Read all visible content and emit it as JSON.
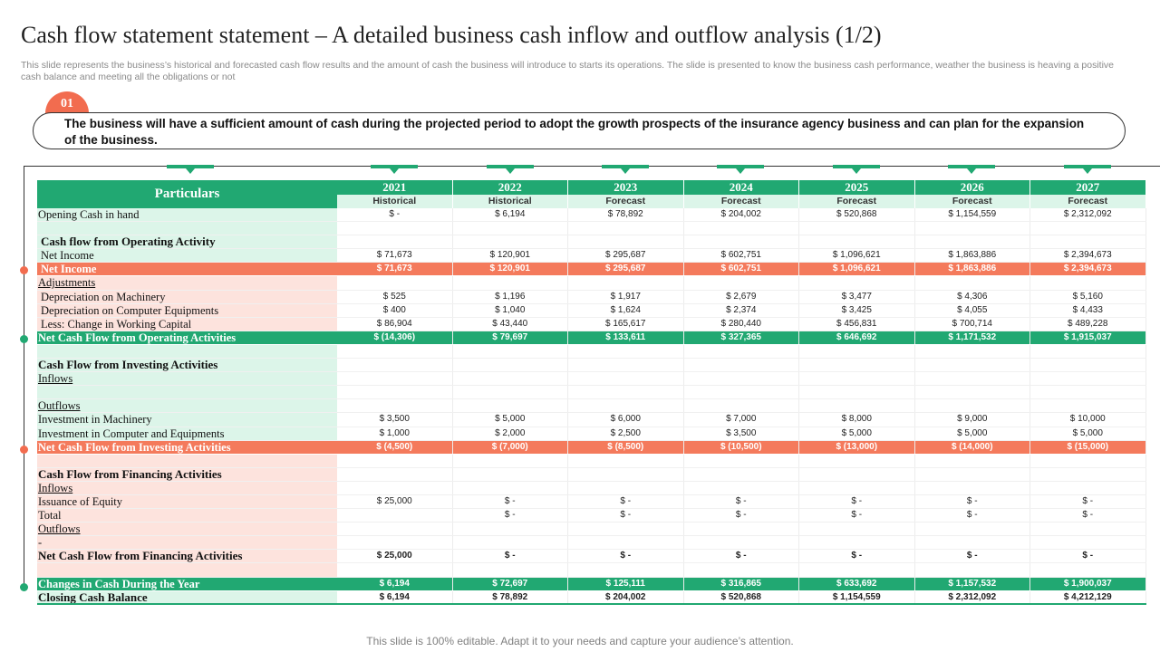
{
  "title": "Cash flow statement statement – A detailed business cash inflow and outflow analysis (1/2)",
  "subtitle": "This slide represents the business’s historical and forecasted cash flow results and the amount of cash the business will introduce to starts its operations. The slide is presented to know the business cash performance, weather the business is heaving a positive cash balance and meeting all the obligations or not",
  "badge": "01",
  "callout": "The business will have a sufficient amount of cash during the projected period to adopt the growth prospects of the insurance agency business and can plan for the expansion of the business.",
  "table": {
    "particulars_label": "Particulars",
    "years": [
      "2021",
      "2022",
      "2023",
      "2024",
      "2025",
      "2026",
      "2027"
    ],
    "types": [
      "Historical",
      "Historical",
      "Forecast",
      "Forecast",
      "Forecast",
      "Forecast",
      "Forecast"
    ],
    "rows": [
      {
        "label": "Opening Cash in hand",
        "cells": [
          "$ -",
          "$ 6,194",
          "$ 78,892",
          "$ 204,002",
          "$        520,868",
          "$ 1,154,559",
          "$ 2,312,092"
        ]
      },
      {
        "label": "",
        "cells": [
          "",
          "",
          "",
          "",
          "",
          "",
          ""
        ]
      },
      {
        "label": "Cash flow from Operating Activity",
        "cells": [
          "",
          "",
          "",
          "",
          "",
          "",
          ""
        ]
      },
      {
        "label": "Net Income",
        "cells": [
          "$ 71,673",
          "$ 120,901",
          "$ 295,687",
          "$ 602,751",
          "$      1,096,621",
          "$ 1,863,886",
          "$ 2,394,673"
        ]
      },
      {
        "label": "Net Income",
        "cells": [
          "$ 71,673",
          "$ 120,901",
          "$ 295,687",
          "$ 602,751",
          "$    1,096,621",
          "$ 1,863,886",
          "$ 2,394,673"
        ]
      },
      {
        "label": "Adjustments",
        "cells": [
          "",
          "",
          "",
          "",
          "",
          "",
          ""
        ]
      },
      {
        "label": "Depreciation on Machinery",
        "cells": [
          "$ 525",
          "$ 1,196",
          "$ 1,917",
          "$ 2,679",
          "$ 3,477",
          "$ 4,306",
          "$ 5,160"
        ]
      },
      {
        "label": "Depreciation on Computer Equipments",
        "cells": [
          "$ 400",
          "$ 1,040",
          "$ 1,624",
          "$ 2,374",
          "$ 3,425",
          "$ 4,055",
          "$ 4,433"
        ]
      },
      {
        "label": "Less: Change in Working Capital",
        "cells": [
          "$ 86,904",
          "$ 43,440",
          "$ 165,617",
          "$ 280,440",
          "$ 456,831",
          "$ 700,714",
          "$ 489,228"
        ]
      },
      {
        "label": "Net Cash Flow from Operating Activities",
        "cells": [
          "$ (14,306)",
          "$ 79,697",
          "$ 133,611",
          "$ 327,365",
          "$ 646,692",
          "$ 1,171,532",
          "$ 1,915,037"
        ]
      },
      {
        "label": "",
        "cells": [
          "",
          "",
          "",
          "",
          "",
          "",
          ""
        ]
      },
      {
        "label": "Cash Flow from Investing Activities",
        "cells": [
          "",
          "",
          "",
          "",
          "",
          "",
          ""
        ]
      },
      {
        "label": "Inflows",
        "cells": [
          "",
          "",
          "",
          "",
          "",
          "",
          ""
        ]
      },
      {
        "label": "",
        "cells": [
          "",
          "",
          "",
          "",
          "",
          "",
          ""
        ]
      },
      {
        "label": "Outflows",
        "cells": [
          "",
          "",
          "",
          "",
          "",
          "",
          ""
        ]
      },
      {
        "label": "Investment in Machinery",
        "cells": [
          "$ 3,500",
          "$ 5,000",
          "$ 6,000",
          "$ 7,000",
          "$ 8,000",
          "$ 9,000",
          "$ 10,000"
        ]
      },
      {
        "label": "Investment in Computer and Equipments",
        "cells": [
          "$ 1,000",
          "$ 2,000",
          "$ 2,500",
          "$ 3,500",
          "$ 5,000",
          "$ 5,000",
          "$ 5,000"
        ]
      },
      {
        "label": "Net Cash Flow from Investing Activities",
        "cells": [
          "$ (4,500)",
          "$ (7,000)",
          "$ (8,500)",
          "$ (10,500)",
          "$ (13,000)",
          "$ (14,000)",
          "$ (15,000)"
        ]
      },
      {
        "label": "",
        "cells": [
          "",
          "",
          "",
          "",
          "",
          "",
          ""
        ]
      },
      {
        "label": "Cash Flow from Financing Activities",
        "cells": [
          "",
          "",
          "",
          "",
          "",
          "",
          ""
        ]
      },
      {
        "label": "Inflows",
        "cells": [
          "",
          "",
          "",
          "",
          "",
          "",
          ""
        ]
      },
      {
        "label": "Issuance of Equity",
        "cells": [
          "$ 25,000",
          "$ -",
          "$ -",
          "$ -",
          "$ -",
          "$ -",
          "$ -"
        ]
      },
      {
        "label": "Total",
        "cells": [
          "",
          "$ -",
          "$ -",
          "$ -",
          "$ -",
          "$ -",
          "$ -"
        ]
      },
      {
        "label": "Outflows",
        "cells": [
          "",
          "",
          "",
          "",
          "",
          "",
          ""
        ]
      },
      {
        "label": "-",
        "cells": [
          "",
          "",
          "",
          "",
          "",
          "",
          ""
        ]
      },
      {
        "label": "Net Cash Flow from Financing Activities",
        "cells": [
          "$ 25,000",
          "$ -",
          "$ -",
          "$ -",
          "$             -",
          "$ -",
          "$ -"
        ]
      },
      {
        "label": "",
        "cells": [
          "",
          "",
          "",
          "",
          "",
          "",
          ""
        ]
      },
      {
        "label": "Changes in Cash During the Year",
        "cells": [
          "$ 6,194",
          "$ 72,697",
          "$ 125,111",
          "$ 316,865",
          "$ 633,692",
          "$ 1,157,532",
          "$ 1,900,037"
        ]
      },
      {
        "label": "Closing Cash Balance",
        "cells": [
          "$ 6,194",
          "$ 78,892",
          "$ 204,002",
          "$ 520,868",
          "$ 1,154,559",
          "$ 2,312,092",
          "$ 4,212,129"
        ]
      }
    ]
  },
  "footer": "This slide is 100% editable. Adapt it to your needs and capture your audience’s attention.",
  "colors": {
    "green": "#21a872",
    "red": "#f26c4f",
    "light_green": "#dcf5e9",
    "light_pink": "#fde3dd"
  }
}
